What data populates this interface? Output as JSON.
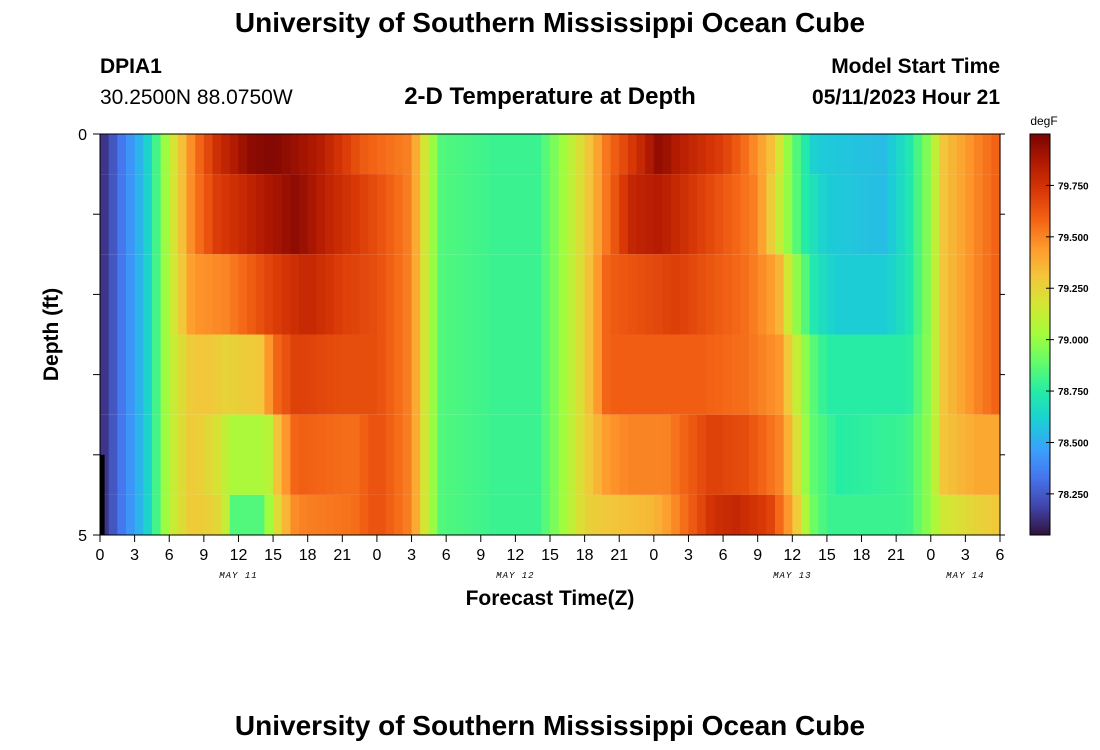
{
  "header": {
    "title": "University of Southern Mississippi Ocean Cube",
    "station": "DPIA1",
    "coords": "30.2500N  88.0750W",
    "subtitle": "2-D Temperature at Depth",
    "model_start_label": "Model Start Time",
    "model_start_value": "05/11/2023 Hour 21"
  },
  "footer": {
    "title": "University of Southern Mississippi Ocean Cube"
  },
  "colors": {
    "scale": [
      "#30123b",
      "#4145ab",
      "#4675ed",
      "#39a2fc",
      "#1bcfd4",
      "#24eca6",
      "#61fc6c",
      "#a4fc3b",
      "#d1e834",
      "#f3c63a",
      "#fe9b2d",
      "#f36315",
      "#d93806",
      "#b11901",
      "#7a0403"
    ],
    "missing": "#ffffff"
  },
  "chart_data": {
    "type": "heatmap",
    "title": "2-D Temperature at Depth",
    "xlabel": "Forecast Time(Z)",
    "ylabel": "Depth (ft)",
    "x_hours": [
      0,
      3,
      6,
      9,
      12,
      15,
      18,
      21,
      24,
      27,
      30,
      33,
      36,
      39,
      42,
      45,
      48,
      51,
      54,
      57,
      60,
      63,
      66,
      69,
      72,
      75,
      78
    ],
    "x_tick_labels": [
      "0",
      "3",
      "6",
      "9",
      "12",
      "15",
      "18",
      "21",
      "0",
      "3",
      "6",
      "9",
      "12",
      "15",
      "18",
      "21",
      "0",
      "3",
      "6",
      "9",
      "12",
      "15",
      "18",
      "21",
      "0",
      "3",
      "6"
    ],
    "day_labels": [
      {
        "text": "MAY 11",
        "hour": 12
      },
      {
        "text": "MAY 12",
        "hour": 36
      },
      {
        "text": "MAY 13",
        "hour": 60
      },
      {
        "text": "MAY 14",
        "hour": 75
      }
    ],
    "y_ticks": [
      0,
      1,
      2,
      3,
      4,
      5
    ],
    "y_tick_labels": [
      "0",
      "",
      "",
      "",
      "",
      "5"
    ],
    "ylim": [
      0,
      5
    ],
    "xlim": [
      0,
      78
    ],
    "colorbar": {
      "unit": "degF",
      "range": [
        78.05,
        80.0
      ],
      "ticks": [
        78.25,
        78.5,
        78.75,
        79.0,
        79.25,
        79.5,
        79.75
      ],
      "tick_labels": [
        "78.250",
        "78.500",
        "78.750",
        "79.000",
        "79.250",
        "79.500",
        "79.750"
      ]
    },
    "layers": [
      {
        "depth_top": 0,
        "depth_bottom": 0.5,
        "anchors": [
          [
            0,
            78.1
          ],
          [
            4,
            78.6
          ],
          [
            6,
            79.1
          ],
          [
            8,
            79.5
          ],
          [
            10,
            79.75
          ],
          [
            13,
            79.95
          ],
          [
            15,
            79.98
          ],
          [
            19,
            79.85
          ],
          [
            23,
            79.6
          ],
          [
            27,
            79.5
          ],
          [
            28,
            79.2
          ],
          [
            29.5,
            78.85
          ],
          [
            34,
            78.8
          ],
          [
            38,
            78.8
          ],
          [
            40,
            79.0
          ],
          [
            42,
            79.25
          ],
          [
            44,
            79.55
          ],
          [
            47,
            79.8
          ],
          [
            48.5,
            79.95
          ],
          [
            50,
            79.85
          ],
          [
            54,
            79.7
          ],
          [
            56,
            79.55
          ],
          [
            58,
            79.35
          ],
          [
            59,
            79.15
          ],
          [
            60,
            78.9
          ],
          [
            62,
            78.6
          ],
          [
            68,
            78.55
          ],
          [
            70,
            78.7
          ],
          [
            72,
            79.0
          ],
          [
            73,
            79.3
          ],
          [
            76,
            79.5
          ],
          [
            78,
            79.6
          ]
        ],
        "missing_x": [
          15.7,
          16.1
        ]
      },
      {
        "depth_top": 0.5,
        "depth_bottom": 1.5,
        "anchors": [
          [
            0,
            78.1
          ],
          [
            4,
            78.6
          ],
          [
            6,
            79.1
          ],
          [
            8,
            79.5
          ],
          [
            10,
            79.7
          ],
          [
            14,
            79.85
          ],
          [
            17,
            79.95
          ],
          [
            20,
            79.8
          ],
          [
            24,
            79.65
          ],
          [
            27,
            79.5
          ],
          [
            28,
            79.2
          ],
          [
            29.5,
            78.85
          ],
          [
            34,
            78.8
          ],
          [
            38,
            78.8
          ],
          [
            40,
            79.0
          ],
          [
            42,
            79.25
          ],
          [
            44,
            79.55
          ],
          [
            46,
            79.8
          ],
          [
            48.5,
            79.85
          ],
          [
            52,
            79.7
          ],
          [
            57,
            79.5
          ],
          [
            59,
            79.1
          ],
          [
            61,
            78.75
          ],
          [
            63,
            78.6
          ],
          [
            68,
            78.55
          ],
          [
            70,
            78.7
          ],
          [
            72,
            79.0
          ],
          [
            73,
            79.3
          ],
          [
            76,
            79.5
          ],
          [
            78,
            79.6
          ]
        ]
      },
      {
        "depth_top": 1.5,
        "depth_bottom": 2.5,
        "anchors": [
          [
            0,
            78.1
          ],
          [
            4,
            78.6
          ],
          [
            6,
            79.1
          ],
          [
            8,
            79.45
          ],
          [
            11,
            79.5
          ],
          [
            15,
            79.7
          ],
          [
            18,
            79.8
          ],
          [
            21,
            79.7
          ],
          [
            24,
            79.65
          ],
          [
            27,
            79.5
          ],
          [
            28,
            79.2
          ],
          [
            29.5,
            78.85
          ],
          [
            34,
            78.8
          ],
          [
            38,
            78.8
          ],
          [
            40,
            79.0
          ],
          [
            42,
            79.25
          ],
          [
            44,
            79.6
          ],
          [
            50,
            79.7
          ],
          [
            56,
            79.55
          ],
          [
            58,
            79.45
          ],
          [
            59,
            79.35
          ],
          [
            60,
            79.05
          ],
          [
            62,
            78.7
          ],
          [
            64,
            78.6
          ],
          [
            68,
            78.6
          ],
          [
            70,
            78.7
          ],
          [
            72,
            79.0
          ],
          [
            73,
            79.3
          ],
          [
            76,
            79.5
          ],
          [
            78,
            79.6
          ]
        ]
      },
      {
        "depth_top": 2.5,
        "depth_bottom": 3.5,
        "anchors": [
          [
            0,
            78.1
          ],
          [
            4,
            78.6
          ],
          [
            6,
            79.1
          ],
          [
            8,
            79.3
          ],
          [
            9.5,
            79.3
          ],
          [
            11,
            79.25
          ],
          [
            14,
            79.3
          ],
          [
            15,
            79.55
          ],
          [
            17,
            79.7
          ],
          [
            21,
            79.65
          ],
          [
            24,
            79.65
          ],
          [
            27,
            79.5
          ],
          [
            28,
            79.2
          ],
          [
            29.5,
            78.85
          ],
          [
            34,
            78.8
          ],
          [
            38,
            78.8
          ],
          [
            40,
            79.0
          ],
          [
            42,
            79.25
          ],
          [
            44,
            79.6
          ],
          [
            52,
            79.6
          ],
          [
            56,
            79.55
          ],
          [
            59,
            79.45
          ],
          [
            60,
            79.2
          ],
          [
            61.5,
            78.9
          ],
          [
            63,
            78.75
          ],
          [
            70,
            78.75
          ],
          [
            72,
            79.0
          ],
          [
            73,
            79.3
          ],
          [
            76,
            79.5
          ],
          [
            78,
            79.6
          ]
        ]
      },
      {
        "depth_top": 3.5,
        "depth_bottom": 4.5,
        "anchors": [
          [
            0,
            78.1
          ],
          [
            4,
            78.6
          ],
          [
            6,
            79.1
          ],
          [
            8,
            79.3
          ],
          [
            10,
            79.2
          ],
          [
            11.5,
            79.05
          ],
          [
            14.5,
            79.05
          ],
          [
            15.5,
            79.35
          ],
          [
            17,
            79.6
          ],
          [
            22,
            79.55
          ],
          [
            24,
            79.65
          ],
          [
            27,
            79.5
          ],
          [
            28,
            79.2
          ],
          [
            29.5,
            78.85
          ],
          [
            34,
            78.8
          ],
          [
            38,
            78.8
          ],
          [
            40,
            79.0
          ],
          [
            42,
            79.25
          ],
          [
            44,
            79.45
          ],
          [
            46,
            79.5
          ],
          [
            49,
            79.5
          ],
          [
            53,
            79.7
          ],
          [
            56,
            79.65
          ],
          [
            59,
            79.5
          ],
          [
            60,
            79.3
          ],
          [
            61.5,
            78.9
          ],
          [
            64,
            78.75
          ],
          [
            70,
            78.8
          ],
          [
            72,
            79.0
          ],
          [
            73,
            79.3
          ],
          [
            76,
            79.4
          ],
          [
            78,
            79.4
          ]
        ]
      },
      {
        "depth_top": 4.5,
        "depth_bottom": 5.0,
        "anchors": [
          [
            0,
            78.1
          ],
          [
            4,
            78.6
          ],
          [
            6,
            79.1
          ],
          [
            8,
            79.3
          ],
          [
            10,
            79.25
          ],
          [
            11,
            79.1
          ],
          [
            11.5,
            78.85
          ],
          [
            14,
            78.85
          ],
          [
            15.5,
            79.25
          ],
          [
            17,
            79.5
          ],
          [
            22,
            79.55
          ],
          [
            24,
            79.65
          ],
          [
            27,
            79.5
          ],
          [
            28,
            79.2
          ],
          [
            29.5,
            78.85
          ],
          [
            34,
            78.8
          ],
          [
            38,
            78.8
          ],
          [
            40,
            79.0
          ],
          [
            42,
            79.25
          ],
          [
            44,
            79.3
          ],
          [
            48,
            79.35
          ],
          [
            50,
            79.5
          ],
          [
            53,
            79.75
          ],
          [
            55,
            79.8
          ],
          [
            58,
            79.7
          ],
          [
            60,
            79.4
          ],
          [
            61.5,
            78.95
          ],
          [
            63,
            78.8
          ],
          [
            70,
            78.8
          ],
          [
            72,
            79.0
          ],
          [
            73,
            79.15
          ],
          [
            76,
            79.25
          ],
          [
            78,
            79.3
          ]
        ]
      }
    ],
    "marker": {
      "depth_top": 4.0,
      "depth_bottom": 5.0,
      "hour_from": 0,
      "hour_to": 0.4,
      "color": "#000000"
    }
  }
}
